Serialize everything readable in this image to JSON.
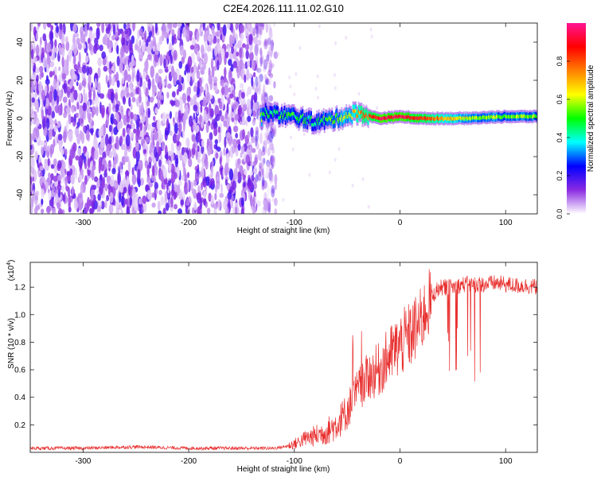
{
  "title": "C2E4.2026.111.11.02.G10",
  "chart_data": [
    {
      "type": "heatmap",
      "name": "spectrogram",
      "xlabel": "Height of straight line (km)",
      "ylabel": "Frequency (Hz)",
      "xlim": [
        -350,
        130
      ],
      "ylim": [
        -50,
        50
      ],
      "x_ticks": [
        -300,
        -200,
        -100,
        0,
        100
      ],
      "x_tick_labels": [
        "-300",
        "-200",
        "-100",
        "0",
        "100"
      ],
      "y_ticks": [
        -40,
        -20,
        0,
        20,
        40
      ],
      "y_tick_labels": [
        "-40",
        "-20",
        "0",
        "20",
        "40"
      ],
      "colorbar": {
        "label": "Normalized spectral amplitude",
        "range": [
          0,
          1
        ],
        "ticks": [
          0.0,
          0.2,
          0.4,
          0.6,
          0.8
        ],
        "tick_labels": [
          "0.0",
          "0.2",
          "0.4",
          "0.6",
          "0.8"
        ],
        "colormap": [
          "#ffffff",
          "#8a2be2",
          "#0000ff",
          "#00ffff",
          "#00ff00",
          "#ffff00",
          "#ff8000",
          "#ff0000",
          "#ff1493"
        ]
      },
      "description_points": [
        {
          "height_km": -350,
          "freq_center_hz": 0,
          "state": "broadband noise"
        },
        {
          "height_km": -125,
          "freq_center_hz": 0,
          "state": "noise ends"
        },
        {
          "height_km": -130,
          "freq_center_hz": 3,
          "amp": 0.45
        },
        {
          "height_km": -100,
          "freq_center_hz": 1,
          "amp": 0.5
        },
        {
          "height_km": -80,
          "freq_center_hz": -2,
          "amp": 0.45
        },
        {
          "height_km": -60,
          "freq_center_hz": 0,
          "amp": 0.55
        },
        {
          "height_km": -40,
          "freq_center_hz": 3,
          "amp": 0.7
        },
        {
          "height_km": -20,
          "freq_center_hz": 0,
          "amp": 0.9
        },
        {
          "height_km": 0,
          "freq_center_hz": 1,
          "amp": 0.95
        },
        {
          "height_km": 20,
          "freq_center_hz": 0,
          "amp": 0.85
        },
        {
          "height_km": 60,
          "freq_center_hz": 0,
          "amp": 0.6
        },
        {
          "height_km": 100,
          "freq_center_hz": 1,
          "amp": 0.55
        },
        {
          "height_km": 130,
          "freq_center_hz": 1,
          "amp": 0.55
        }
      ]
    },
    {
      "type": "line",
      "name": "snr",
      "xlabel": "Height of straight line (km)",
      "ylabel": "SNR (10 * v/v)",
      "y_scale_label": "(x10",
      "y_scale_exponent": "4",
      "y_scale_close": ")",
      "xlim": [
        -350,
        130
      ],
      "ylim": [
        0,
        1.38
      ],
      "x_ticks": [
        -300,
        -200,
        -100,
        0,
        100
      ],
      "x_tick_labels": [
        "-300",
        "-200",
        "-100",
        "0",
        "100"
      ],
      "y_ticks": [
        0.2,
        0.4,
        0.6,
        0.8,
        1.0,
        1.2
      ],
      "y_tick_labels": [
        "0.2",
        "0.4",
        "0.6",
        "0.8",
        "1.0",
        "1.2"
      ],
      "line_color": "#e8302f",
      "series": [
        {
          "name": "SNR",
          "x": [
            -350,
            -300,
            -250,
            -200,
            -150,
            -120,
            -110,
            -100,
            -90,
            -80,
            -70,
            -60,
            -50,
            -45,
            -40,
            -30,
            -20,
            -10,
            0,
            10,
            20,
            25,
            30,
            35,
            40,
            50,
            60,
            70,
            80,
            90,
            100,
            110,
            120,
            130
          ],
          "y": [
            0.03,
            0.03,
            0.04,
            0.03,
            0.03,
            0.03,
            0.04,
            0.06,
            0.1,
            0.12,
            0.15,
            0.2,
            0.3,
            0.38,
            0.45,
            0.55,
            0.6,
            0.7,
            0.78,
            0.85,
            0.95,
            1.05,
            1.12,
            1.18,
            1.2,
            1.2,
            1.22,
            1.22,
            1.22,
            1.23,
            1.22,
            1.21,
            1.21,
            1.2
          ]
        }
      ]
    }
  ]
}
